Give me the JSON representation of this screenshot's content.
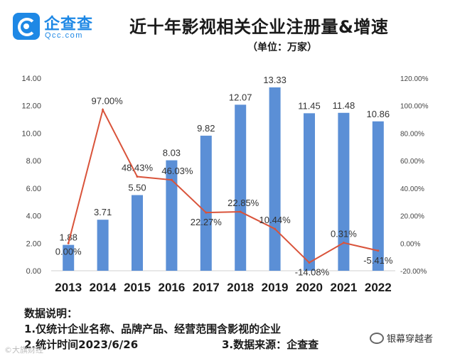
{
  "brand": {
    "name": "企查查",
    "domain": "Qcc.com"
  },
  "header": {
    "title": "近十年影视相关企业注册量&增速",
    "unit": "（单位：万家）"
  },
  "colors": {
    "bar": "#5b8fd6",
    "line": "#d9533a",
    "accent": "#1e88e5"
  },
  "chart_data": {
    "type": "bar+line",
    "categories": [
      "2013",
      "2014",
      "2015",
      "2016",
      "2017",
      "2018",
      "2019",
      "2020",
      "2021",
      "2022"
    ],
    "series": [
      {
        "name": "注册量（万家）",
        "type": "bar",
        "axis": "left",
        "values": [
          1.88,
          3.71,
          5.5,
          8.03,
          9.82,
          12.07,
          13.33,
          11.45,
          11.48,
          10.86
        ],
        "labels": [
          "1.88",
          "3.71",
          "5.50",
          "8.03",
          "9.82",
          "12.07",
          "13.33",
          "11.45",
          "11.48",
          "10.86"
        ]
      },
      {
        "name": "增速",
        "type": "line",
        "axis": "right",
        "values": [
          0.0,
          97.0,
          48.43,
          46.03,
          22.27,
          22.85,
          10.44,
          -14.08,
          0.31,
          -5.41
        ],
        "labels": [
          "0.00%",
          "97.00%",
          "48.43%",
          "46.03%",
          "22.27%",
          "22.85%",
          "10.44%",
          "-14.08%",
          "0.31%",
          "-5.41%"
        ]
      }
    ],
    "y_left": {
      "range": [
        0,
        14
      ],
      "ticks": [
        "0.00",
        "2.00",
        "4.00",
        "6.00",
        "8.00",
        "10.00",
        "12.00",
        "14.00"
      ]
    },
    "y_right": {
      "range": [
        -20,
        120
      ],
      "ticks": [
        "-20.00%",
        "0.00%",
        "20.00%",
        "40.00%",
        "60.00%",
        "80.00%",
        "100.00%",
        "120.00%"
      ]
    },
    "grid": false,
    "legend": "none"
  },
  "notes": {
    "heading": "数据说明：",
    "line1": "1.仅统计企业名称、品牌产品、经营范围含影视的企业",
    "line2_left": "2.统计时间2023/6/26",
    "line2_right": "3.数据来源：企查查"
  },
  "footer": {
    "account": "银幕穿越者",
    "watermark": "©大旗财经"
  }
}
